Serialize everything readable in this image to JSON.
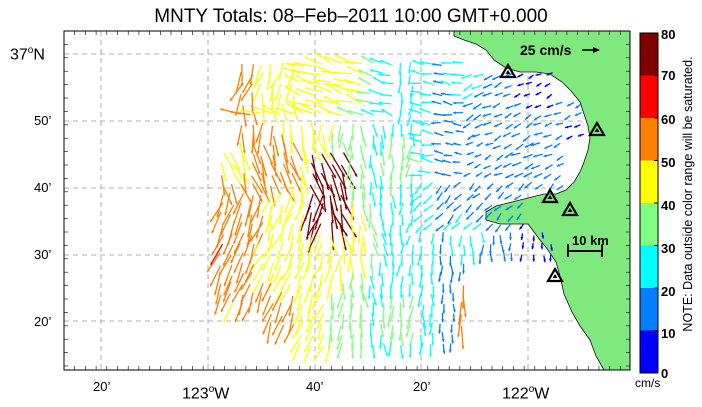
{
  "title": "MNTY Totals: 08–Feb–2011 10:00 GMT+0.000",
  "axes": {
    "lat_labels": [
      {
        "text": "37",
        "suffix": "N",
        "deg": true
      },
      {
        "text": "50’",
        "deg": false
      },
      {
        "text": "40’",
        "deg": false
      },
      {
        "text": "30’",
        "deg": false
      },
      {
        "text": "20’",
        "deg": false
      }
    ],
    "lon_labels": [
      {
        "text": "20’",
        "deg": false
      },
      {
        "text": "123",
        "suffix": "W",
        "deg": true
      },
      {
        "text": "40’",
        "deg": false
      },
      {
        "text": "20’",
        "deg": false
      },
      {
        "text": "122",
        "suffix": "W",
        "deg": true
      }
    ]
  },
  "colorbar": {
    "ticks": [
      "80",
      "70",
      "60",
      "50",
      "40",
      "30",
      "20",
      "10",
      "0"
    ],
    "colors": [
      "#7f0000",
      "#ff0000",
      "#ff8000",
      "#ffff00",
      "#80ff80",
      "#00ffff",
      "#0080ff",
      "#0000ff"
    ],
    "units": "cm/s",
    "note": "NOTE: Data outside color range will be saturated.",
    "range": [
      0,
      80
    ]
  },
  "scale_vector_label": "25 cm/s",
  "scale_bar_label": "10 km",
  "colors": {
    "land": "#7fe87f",
    "grid": "#9a9a9a",
    "station": "#000000"
  },
  "stations_count_shown": 5
}
